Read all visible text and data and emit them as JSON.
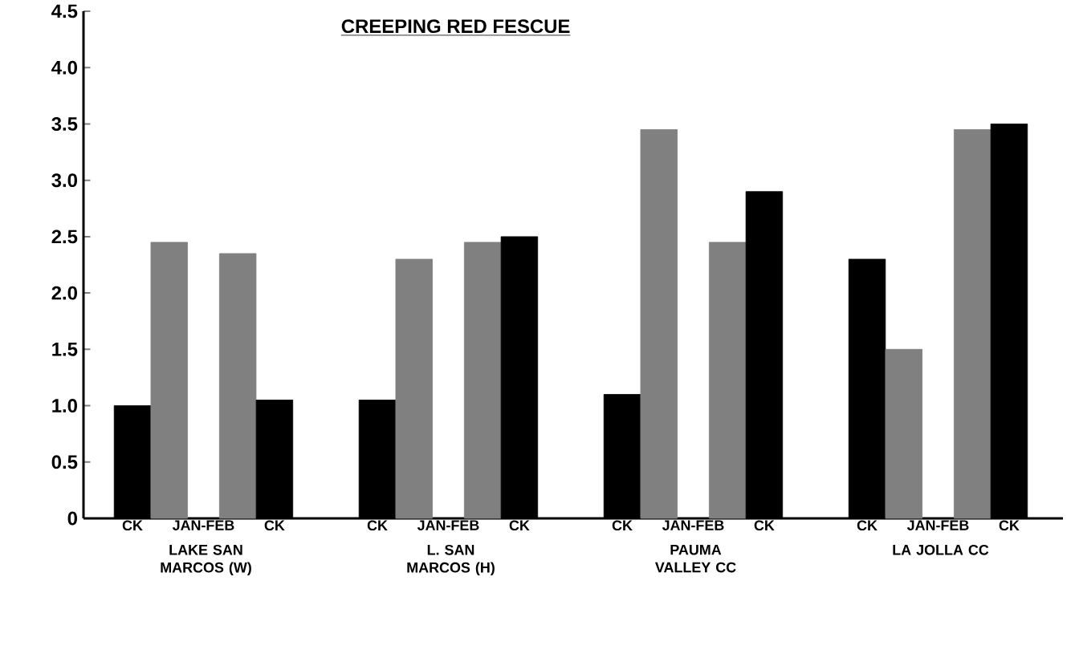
{
  "chart_data": {
    "type": "bar",
    "title": "CREEPING RED FESCUE",
    "categories": [
      "LAKE SAN MARCOS (W)",
      "L. SAN MARCOS (H)",
      "PAUMA VALLEY CC",
      "LA JOLLA CC"
    ],
    "series": [
      {
        "name": "CK",
        "color": "#000000",
        "values": [
          1.0,
          1.05,
          1.1,
          2.3
        ]
      },
      {
        "name": "JAN-FEB",
        "color": "#808080",
        "values": [
          2.45,
          2.3,
          3.45,
          1.5
        ]
      },
      {
        "color": "#808080",
        "values": [
          2.35,
          2.45,
          2.45,
          3.45
        ]
      },
      {
        "name": "CK",
        "color": "#000000",
        "values": [
          1.05,
          2.5,
          2.9,
          3.5
        ]
      }
    ],
    "ylim": [
      0,
      4.5
    ],
    "yticks": [
      0,
      {
        "value": 0.5,
        "label": "0.5"
      },
      {
        "value": 1,
        "label": "1.0"
      },
      {
        "value": 1.5,
        "label": "1.5"
      },
      {
        "value": 2,
        "label": "2.0"
      },
      {
        "value": 2.5,
        "label": "2.5"
      },
      {
        "value": 3,
        "label": "3.0"
      },
      {
        "value": 3.5,
        "label": "3.5"
      },
      {
        "value": 4,
        "label": "4.0"
      },
      {
        "value": 4.5,
        "label": "4.5"
      }
    ],
    "grid": false
  }
}
